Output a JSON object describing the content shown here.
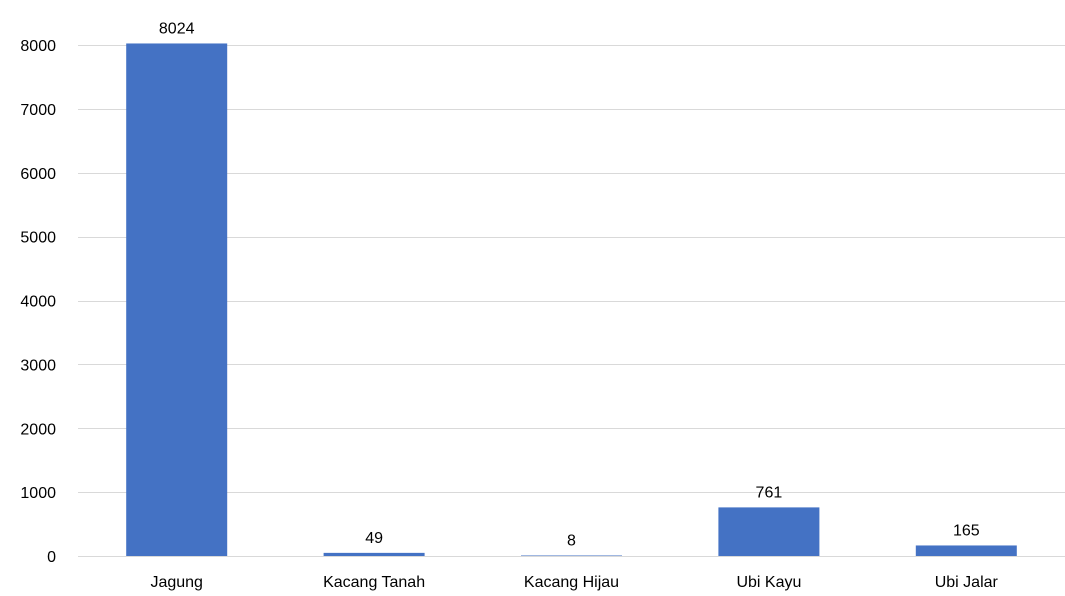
{
  "chart_data": {
    "type": "bar",
    "title": "",
    "xlabel": "",
    "ylabel": "",
    "categories": [
      "Jagung",
      "Kacang Tanah",
      "Kacang Hijau",
      "Ubi Kayu",
      "Ubi Jalar"
    ],
    "values": [
      8024,
      49,
      8,
      761,
      165
    ],
    "data_labels": [
      "8024",
      "49",
      "8",
      "761",
      "165"
    ],
    "ylim": [
      0,
      8000
    ],
    "y_ticks": [
      0,
      1000,
      2000,
      3000,
      4000,
      5000,
      6000,
      7000,
      8000
    ],
    "y_tick_labels": [
      "0",
      "1000",
      "2000",
      "3000",
      "4000",
      "5000",
      "6000",
      "7000",
      "8000"
    ],
    "grid": true,
    "legend": "none",
    "colors": {
      "bar": "#4472c4",
      "grid": "#d9d9d9"
    }
  }
}
